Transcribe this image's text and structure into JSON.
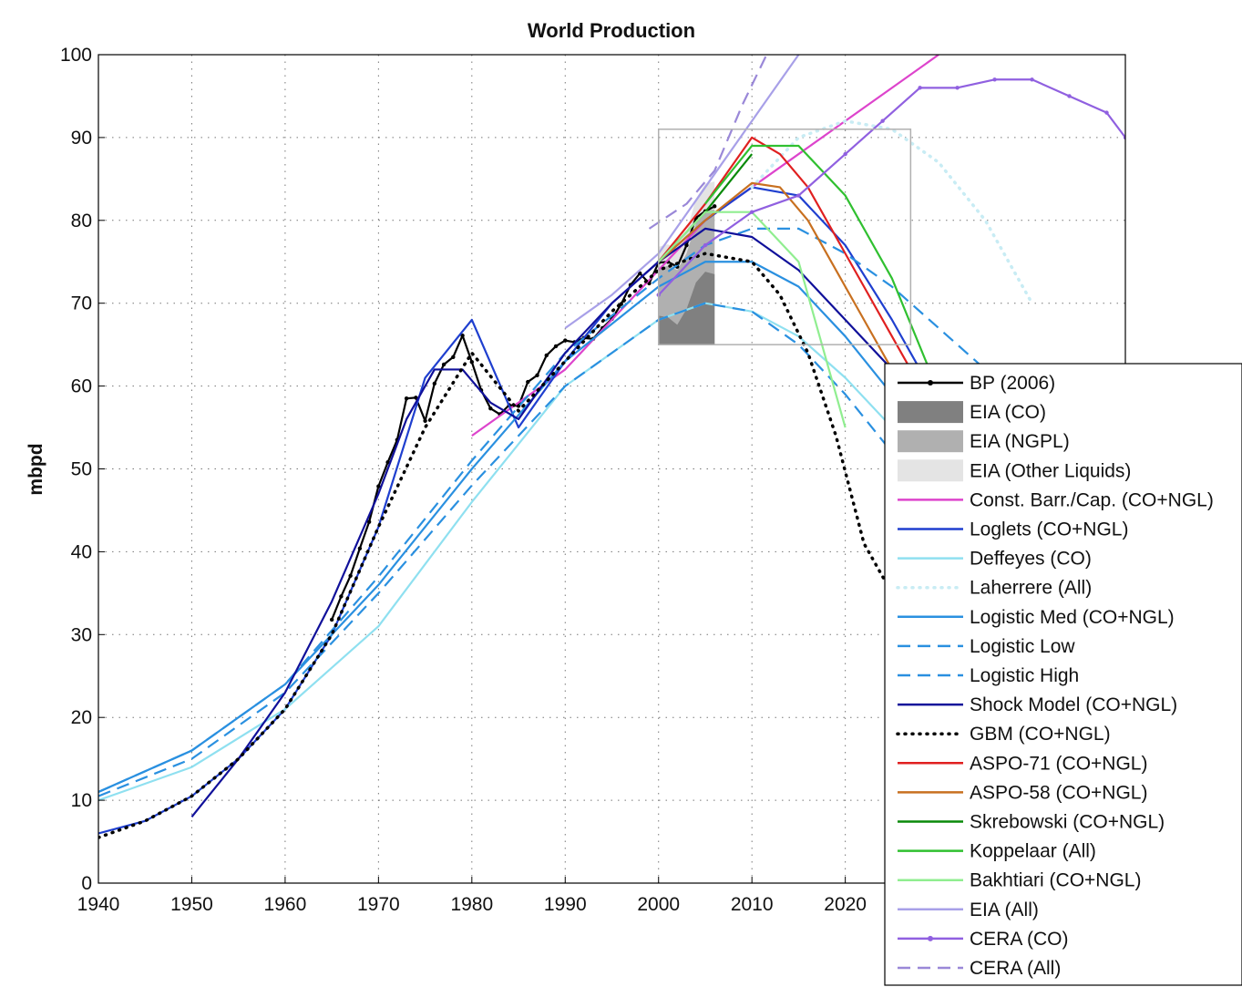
{
  "chart_data": {
    "type": "line",
    "title": "World Production",
    "xlabel": "",
    "ylabel": "mbpd",
    "xlim": [
      1940,
      2050
    ],
    "ylim": [
      0,
      100
    ],
    "x_ticks": [
      1940,
      1950,
      1960,
      1970,
      1980,
      1990,
      2000,
      2010,
      2020
    ],
    "y_ticks": [
      0,
      10,
      20,
      30,
      40,
      50,
      60,
      70,
      80,
      90,
      100
    ],
    "grid": true,
    "legend_position": "bottom-right",
    "series": [
      {
        "name": "BP (2006)",
        "color": "#000000",
        "style": "solid",
        "marker": "dot",
        "x": [
          1965,
          1966,
          1967,
          1968,
          1969,
          1970,
          1971,
          1972,
          1973,
          1974,
          1975,
          1976,
          1977,
          1978,
          1979,
          1980,
          1981,
          1982,
          1983,
          1984,
          1985,
          1986,
          1987,
          1988,
          1989,
          1990,
          1991,
          1992,
          1993,
          1994,
          1995,
          1996,
          1997,
          1998,
          1999,
          2000,
          2001,
          2002,
          2003,
          2004,
          2005,
          2006
        ],
        "y": [
          31.8,
          34.6,
          37.1,
          40.4,
          43.6,
          47.9,
          50.8,
          53.5,
          58.5,
          58.6,
          55.8,
          60.3,
          62.6,
          63.5,
          66.1,
          62.9,
          59.5,
          57.3,
          56.6,
          57.7,
          57.6,
          60.5,
          61.3,
          63.7,
          64.8,
          65.5,
          65.3,
          65.8,
          65.7,
          67.0,
          68.1,
          69.9,
          72.2,
          73.6,
          72.4,
          74.9,
          75.0,
          74.4,
          77.0,
          80.3,
          81.1,
          81.7
        ]
      },
      {
        "name": "EIA (CO)",
        "color": "#808080",
        "style": "area",
        "x": [
          2000,
          2001,
          2002,
          2003,
          2004,
          2005,
          2006
        ],
        "y": [
          68.5,
          68.3,
          67.4,
          69.3,
          72.5,
          73.8,
          73.5
        ]
      },
      {
        "name": "EIA (NGPL)",
        "color": "#b0b0b0",
        "style": "area",
        "x": [
          2000,
          2001,
          2002,
          2003,
          2004,
          2005,
          2006
        ],
        "y": [
          74.2,
          74.5,
          74.0,
          76.0,
          79.6,
          81.2,
          81.3
        ]
      },
      {
        "name": "EIA (Other Liquids)",
        "color": "#e4e4e4",
        "style": "area",
        "x": [
          2000,
          2001,
          2002,
          2003,
          2004,
          2005,
          2006
        ],
        "y": [
          76.8,
          77.1,
          76.6,
          78.6,
          82.6,
          84.4,
          84.7
        ]
      },
      {
        "name": "Const. Barr./Cap. (CO+NGL)",
        "color": "#dd44cc",
        "style": "solid",
        "x": [
          1980,
          1985,
          1990,
          1995,
          2000,
          2005,
          2010,
          2015,
          2020,
          2025,
          2030
        ],
        "y": [
          54,
          58,
          62,
          68,
          74,
          80,
          84,
          88,
          92,
          96,
          100
        ]
      },
      {
        "name": "Loglets (CO+NGL)",
        "color": "#1f3fcf",
        "style": "solid",
        "x": [
          1940,
          1945,
          1950,
          1955,
          1960,
          1965,
          1970,
          1975,
          1980,
          1985,
          1990,
          1995,
          2000,
          2005,
          2010,
          2015,
          2020,
          2025,
          2030
        ],
        "y": [
          6,
          7.5,
          10.5,
          15,
          21,
          30,
          43,
          61,
          68,
          55,
          63,
          70,
          75,
          80,
          84,
          83,
          77,
          68,
          58
        ]
      },
      {
        "name": "Deffeyes (CO)",
        "color": "#8fe0f0",
        "style": "solid",
        "x": [
          1940,
          1950,
          1960,
          1970,
          1980,
          1990,
          2000,
          2005,
          2010,
          2015,
          2020,
          2025,
          2030
        ],
        "y": [
          10,
          14,
          21,
          31,
          46,
          60,
          68,
          70,
          69,
          66,
          61,
          55,
          48
        ]
      },
      {
        "name": "Laherrere (All)",
        "color": "#c8ecf4",
        "style": "dotted",
        "x": [
          2010,
          2015,
          2020,
          2025,
          2030,
          2035,
          2040
        ],
        "y": [
          84,
          90,
          92,
          91,
          87,
          80,
          70
        ]
      },
      {
        "name": "Logistic Med (CO+NGL)",
        "color": "#2a90e0",
        "style": "solid",
        "x": [
          1940,
          1950,
          1960,
          1970,
          1980,
          1990,
          2000,
          2005,
          2010,
          2015,
          2020,
          2025,
          2030
        ],
        "y": [
          11,
          16,
          24,
          36,
          50,
          63,
          72,
          75,
          75,
          72,
          66,
          59,
          51
        ]
      },
      {
        "name": "Logistic Low",
        "color": "#2a90e0",
        "style": "dashed",
        "x": [
          1940,
          1950,
          1960,
          1970,
          1980,
          1990,
          2000,
          2005,
          2010,
          2015,
          2020,
          2025,
          2030
        ],
        "y": [
          10.5,
          15,
          23,
          35,
          48,
          60,
          68,
          70,
          69,
          65,
          59,
          52,
          45
        ]
      },
      {
        "name": "Logistic High",
        "color": "#2a90e0",
        "style": "dashed",
        "x": [
          1940,
          1950,
          1960,
          1970,
          1980,
          1990,
          2000,
          2005,
          2010,
          2015,
          2020,
          2025,
          2030,
          2035
        ],
        "y": [
          11,
          16,
          24,
          37,
          51,
          64,
          73,
          77,
          79,
          79,
          76,
          72,
          67,
          62
        ]
      },
      {
        "name": "Shock Model (CO+NGL)",
        "color": "#10109a",
        "style": "solid",
        "x": [
          1950,
          1955,
          1960,
          1965,
          1970,
          1973,
          1976,
          1979,
          1982,
          1985,
          1990,
          1995,
          2000,
          2005,
          2010,
          2015,
          2020,
          2025
        ],
        "y": [
          8,
          15,
          23,
          34,
          47,
          56,
          62,
          62,
          58,
          56,
          64,
          70,
          75,
          79,
          78,
          74,
          68,
          62
        ]
      },
      {
        "name": "GBM (CO+NGL)",
        "color": "#000000",
        "style": "dotted",
        "x": [
          1940,
          1945,
          1950,
          1955,
          1960,
          1965,
          1970,
          1975,
          1980,
          1985,
          1990,
          1995,
          2000,
          2005,
          2010,
          2013,
          2016,
          2019,
          2022,
          2025
        ],
        "y": [
          5.5,
          7.5,
          10.5,
          15,
          21,
          30,
          43,
          55,
          64,
          57,
          63,
          69,
          74,
          76,
          75,
          71,
          64,
          54,
          41,
          35
        ]
      },
      {
        "name": "ASPO-71 (CO+NGL)",
        "color": "#e02020",
        "style": "solid",
        "x": [
          2000,
          2005,
          2010,
          2013,
          2016,
          2019,
          2022,
          2025,
          2028
        ],
        "y": [
          75,
          82,
          90,
          88,
          84,
          78,
          72,
          66,
          60
        ]
      },
      {
        "name": "ASPO-58 (CO+NGL)",
        "color": "#c87020",
        "style": "solid",
        "x": [
          2000,
          2005,
          2010,
          2013,
          2016,
          2019,
          2022,
          2025
        ],
        "y": [
          75,
          80,
          84.5,
          84,
          80,
          74,
          68,
          62
        ]
      },
      {
        "name": "Skrebowski (CO+NGL)",
        "color": "#0a8a0a",
        "style": "solid",
        "x": [
          2000,
          2005,
          2010
        ],
        "y": [
          75,
          81,
          88
        ]
      },
      {
        "name": "Koppelaar (All)",
        "color": "#30c030",
        "style": "solid",
        "x": [
          2005,
          2010,
          2015,
          2020,
          2025,
          2029
        ],
        "y": [
          82,
          89,
          89,
          83,
          73,
          62
        ]
      },
      {
        "name": "Bakhtiari (CO+NGL)",
        "color": "#90ee90",
        "style": "solid",
        "x": [
          2000,
          2005,
          2010,
          2015,
          2020
        ],
        "y": [
          75,
          81,
          81,
          75,
          55
        ]
      },
      {
        "name": "EIA (All)",
        "color": "#a8a0e8",
        "style": "solid",
        "x": [
          1990,
          1995,
          2000,
          2005,
          2010,
          2015
        ],
        "y": [
          67,
          71,
          76,
          84,
          92,
          100
        ]
      },
      {
        "name": "CERA (CO)",
        "color": "#9060e0",
        "style": "solid",
        "marker": "dot",
        "x": [
          2000,
          2005,
          2010,
          2015,
          2020,
          2024,
          2028,
          2032,
          2036,
          2040,
          2044,
          2048,
          2050
        ],
        "y": [
          71,
          77,
          81,
          83,
          88,
          92,
          96,
          96,
          97,
          97,
          95,
          93,
          90
        ]
      },
      {
        "name": "CERA (All)",
        "color": "#9a88d8",
        "style": "dashed",
        "x": [
          1999,
          2003,
          2006,
          2009,
          2012
        ],
        "y": [
          79,
          82,
          86,
          94,
          101
        ]
      }
    ],
    "highlight_box": {
      "x": [
        2000,
        2027
      ],
      "y": [
        65,
        91
      ]
    }
  }
}
